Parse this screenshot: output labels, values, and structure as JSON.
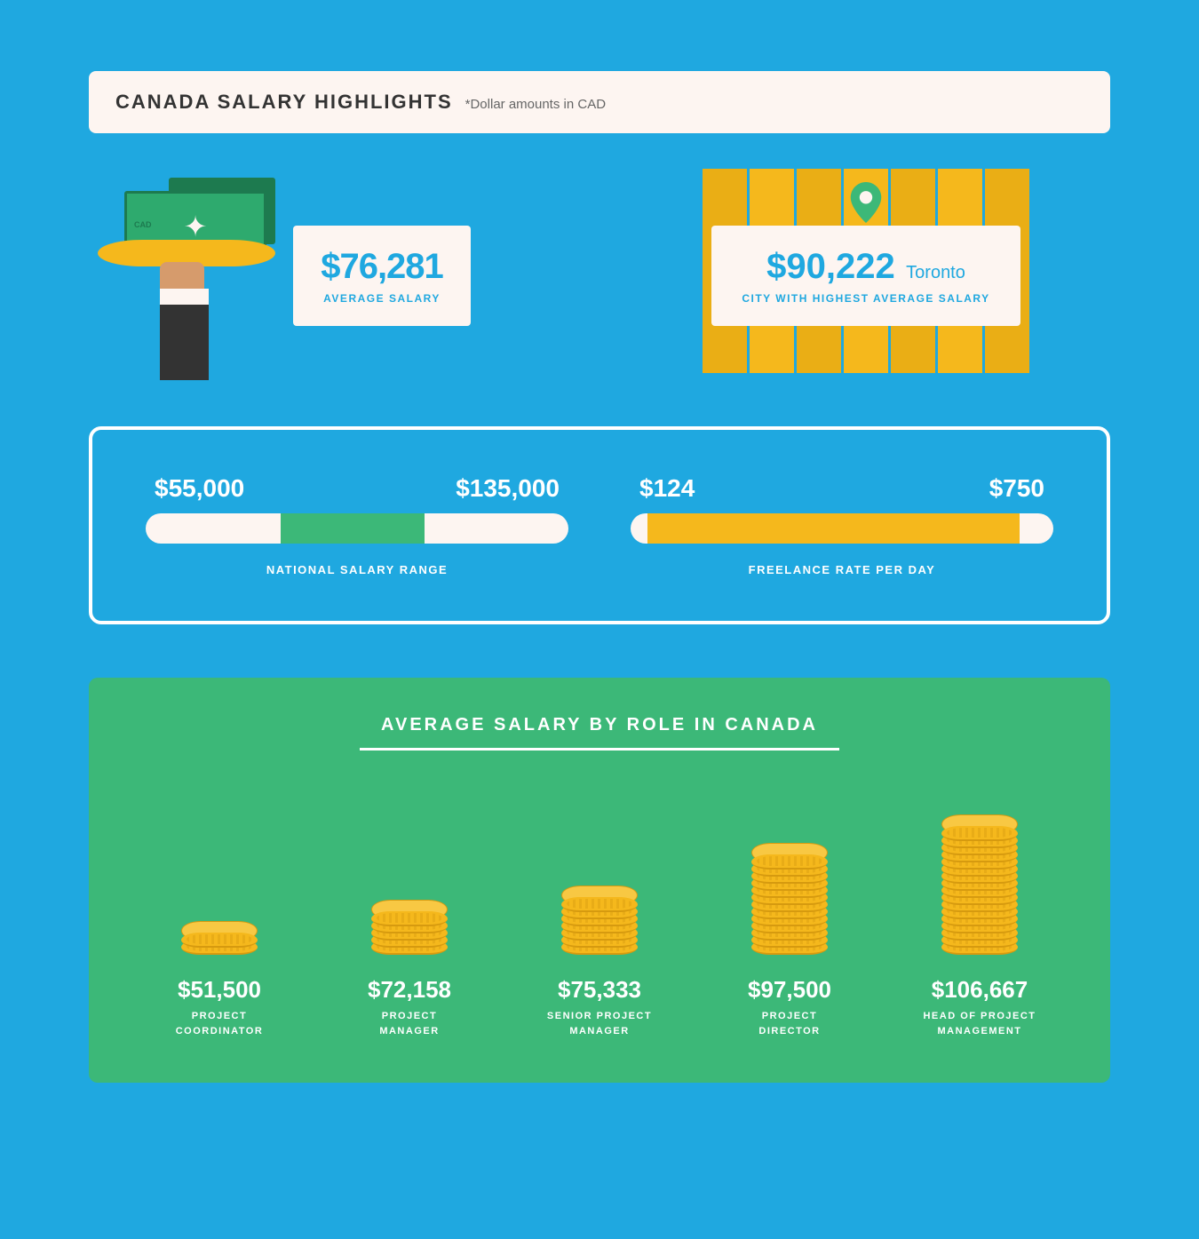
{
  "header": {
    "title": "CANADA SALARY HIGHLIGHTS",
    "note": "*Dollar amounts in CAD"
  },
  "average": {
    "value": "$76,281",
    "label": "AVERAGE SALARY",
    "currency_badge": "CAD"
  },
  "topCity": {
    "value": "$90,222",
    "city": "Toronto",
    "label": "CITY WITH HIGHEST AVERAGE SALARY"
  },
  "nationalRange": {
    "low": "$55,000",
    "high": "$135,000",
    "caption": "NATIONAL SALARY RANGE",
    "fill_color": "#3cb878",
    "fill_start_pct": 32,
    "fill_width_pct": 34
  },
  "freelance": {
    "low": "$124",
    "high": "$750",
    "caption": "FREELANCE RATE PER DAY",
    "fill_color": "#f5b81c",
    "fill_start_pct": 4,
    "fill_width_pct": 88
  },
  "rolesTitle": "AVERAGE SALARY BY ROLE IN CANADA",
  "roles": [
    {
      "value": "$51,500",
      "label": "PROJECT\nCOORDINATOR",
      "coins": 2
    },
    {
      "value": "$72,158",
      "label": "PROJECT\nMANAGER",
      "coins": 5
    },
    {
      "value": "$75,333",
      "label": "SENIOR PROJECT\nMANAGER",
      "coins": 7
    },
    {
      "value": "$97,500",
      "label": "PROJECT\nDIRECTOR",
      "coins": 13
    },
    {
      "value": "$106,667",
      "label": "HEAD OF PROJECT\nMANAGEMENT",
      "coins": 17
    }
  ],
  "colors": {
    "bg": "#1fa8e0",
    "cream": "#fdf5f1",
    "green": "#3cb878",
    "gold": "#f5b81c",
    "darkgreen": "#1d7a4f"
  }
}
